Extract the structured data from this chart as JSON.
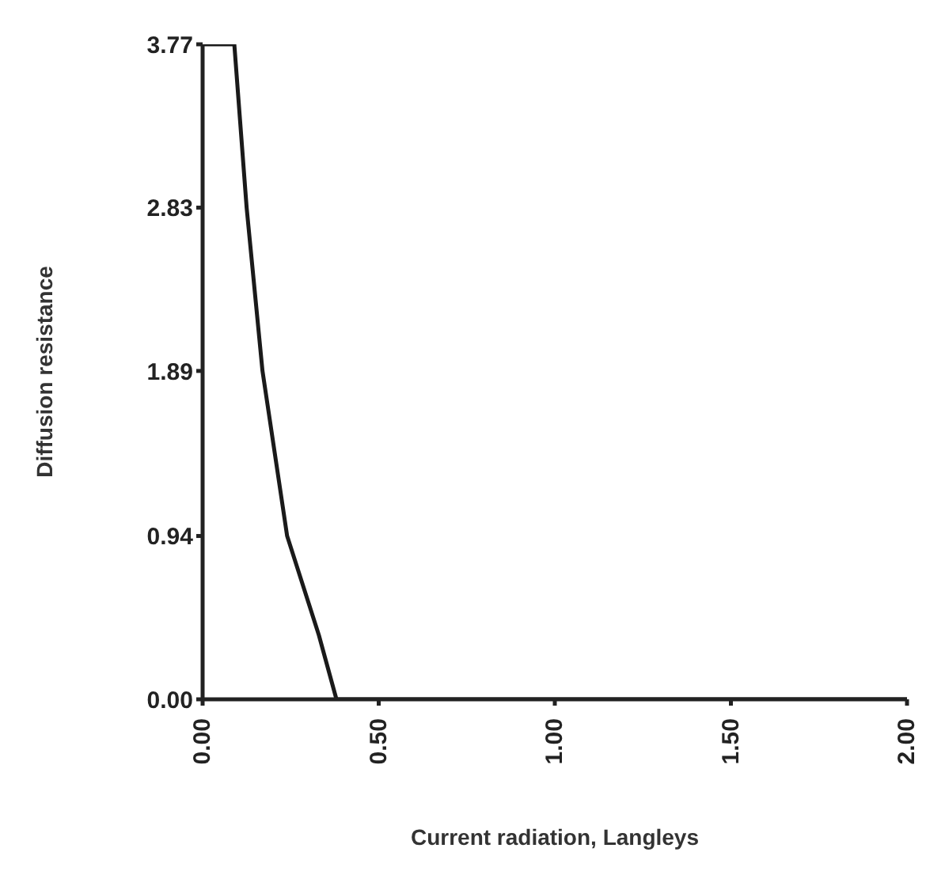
{
  "chart_data": {
    "type": "line",
    "xlabel": "Current radiation, Langleys",
    "ylabel": "Diffusion resistance",
    "x": [
      0,
      0.09,
      0.125,
      0.17,
      0.24,
      0.33,
      0.38,
      2.0
    ],
    "series": [
      {
        "color": "#1a1a1a",
        "values": [
          3.77,
          3.77,
          2.83,
          1.89,
          0.94,
          0.37,
          0,
          0
        ]
      }
    ],
    "xlim": [
      0,
      2
    ],
    "xticks": [
      {
        "value": 0,
        "label": "0.00"
      },
      {
        "value": 0.5,
        "label": "0.50"
      },
      {
        "value": 1,
        "label": "1.00"
      },
      {
        "value": 1.5,
        "label": "1.50"
      },
      {
        "value": 2,
        "label": "2.00"
      }
    ],
    "ylim": [
      0,
      3.77
    ],
    "yticks": [
      {
        "value": 0,
        "label": "0.00"
      },
      0.94,
      1.89,
      2.83,
      3.77
    ],
    "grid": false,
    "legend": false,
    "marker": "none",
    "line_style": "solid"
  }
}
